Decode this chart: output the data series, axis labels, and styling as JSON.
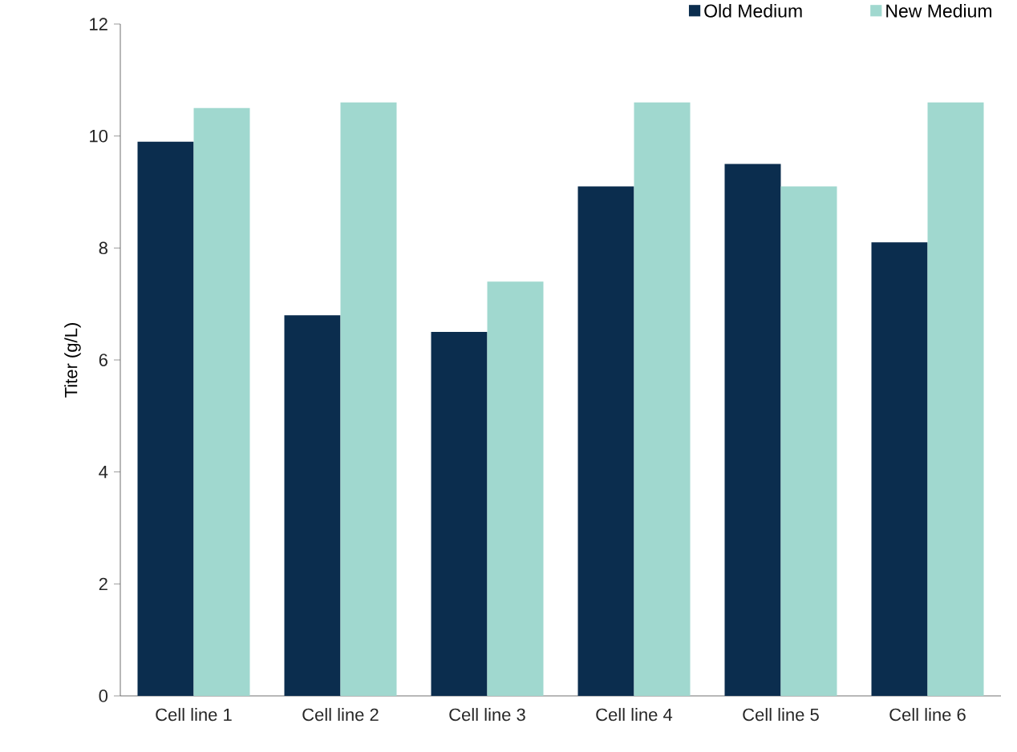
{
  "chart_data": {
    "type": "bar",
    "ylabel": "Titer (g/L)",
    "categories": [
      "Cell line 1",
      "Cell line 2",
      "Cell line 3",
      "Cell line 4",
      "Cell line 5",
      "Cell line 6"
    ],
    "series": [
      {
        "name": "Old Medium",
        "color": "#0b2d4e",
        "values": [
          9.9,
          6.8,
          6.5,
          9.1,
          9.5,
          8.1
        ]
      },
      {
        "name": "New Medium",
        "color": "#a0d8cf",
        "values": [
          10.5,
          10.6,
          7.4,
          10.6,
          9.1,
          10.6
        ]
      }
    ],
    "ylim": [
      0,
      12
    ],
    "yticks": [
      0,
      2,
      4,
      6,
      8,
      10,
      12
    ],
    "legend": "top right",
    "grid": false
  }
}
